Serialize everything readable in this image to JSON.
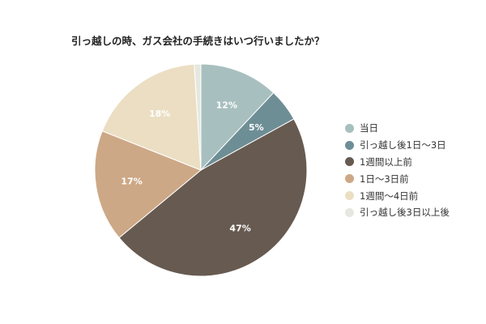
{
  "chart_data": {
    "type": "pie",
    "title": "引っ越しの時、ガス会社の手続きはいつ行いましたか？",
    "categories": [
      "当日",
      "引っ越し後1日～3日",
      "1週間以上前",
      "1日～3日前",
      "1週間～4日前",
      "引っ越し後3日以上後"
    ],
    "values": [
      12,
      5,
      47,
      17,
      18,
      1
    ],
    "value_labels": [
      "12%",
      "5%",
      "47%",
      "17%",
      "18%",
      ""
    ],
    "colors": [
      "#a8bfbf",
      "#6e8e96",
      "#675a50",
      "#cda886",
      "#ebdec3",
      "#e6e8e0"
    ],
    "legend_position": "right"
  }
}
